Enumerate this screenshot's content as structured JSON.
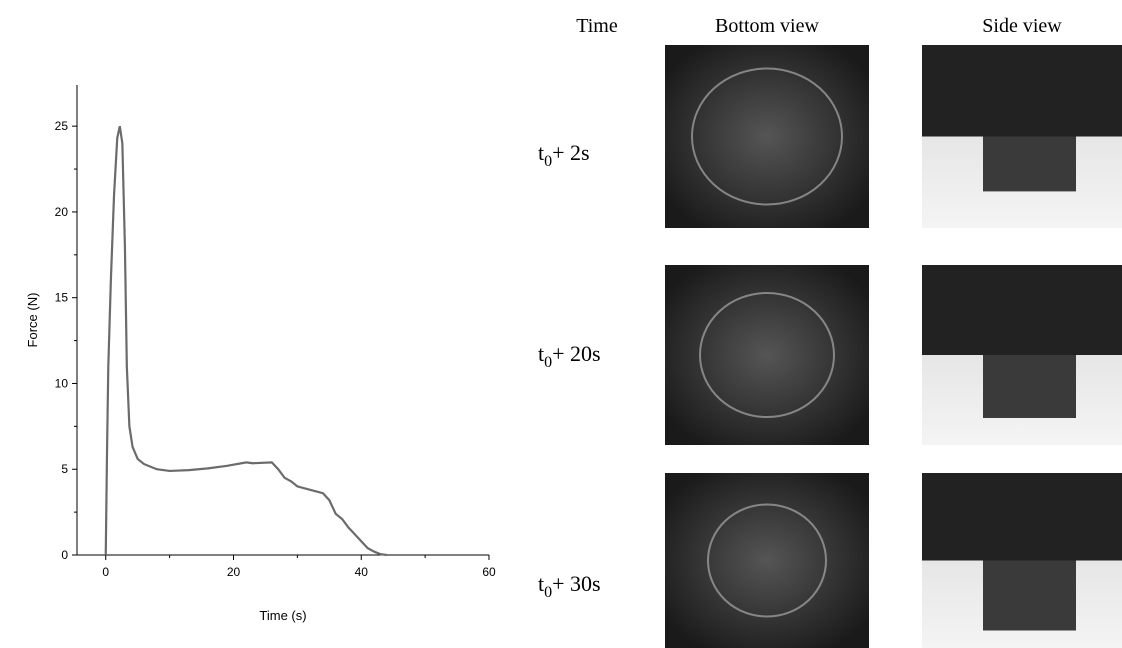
{
  "chart_data": {
    "type": "line",
    "xlabel": "Time (s)",
    "ylabel": "Force (N)",
    "x": [
      0,
      0.2,
      0.4,
      0.8,
      1.3,
      1.8,
      2.2,
      2.6,
      3,
      3.3,
      3.7,
      4.2,
      5,
      6,
      8,
      10,
      13,
      16,
      19,
      22,
      23,
      26,
      27,
      28,
      29,
      30,
      32,
      34,
      35,
      36,
      37,
      38,
      39,
      40,
      41,
      42,
      43,
      44
    ],
    "series": [
      {
        "name": "Force",
        "color": "#6b6b6b",
        "values": [
          0,
          6,
          11,
          16,
          21,
          24.3,
          25,
          24,
          18,
          11,
          7.5,
          6.3,
          5.6,
          5.3,
          5.0,
          4.9,
          4.95,
          5.05,
          5.2,
          5.4,
          5.35,
          5.4,
          5.0,
          4.5,
          4.3,
          4.0,
          3.8,
          3.6,
          3.2,
          2.4,
          2.1,
          1.6,
          1.2,
          0.8,
          0.4,
          0.2,
          0.05,
          0
        ]
      }
    ],
    "xlim": [
      -4.5,
      60
    ],
    "ylim": [
      0,
      27.4
    ],
    "xticks": [
      0,
      20,
      40,
      60
    ],
    "yticks": [
      0,
      5,
      10,
      15,
      20,
      25
    ],
    "xminorticks": [
      10,
      30,
      50
    ],
    "yminorticks": [
      2.5,
      7.5,
      12.5,
      17.5,
      22.5
    ]
  },
  "panel": {
    "headers": [
      "Time",
      "Bottom view",
      "Side view"
    ],
    "rows": [
      {
        "t": "t",
        "sub": "0",
        "rest": "+ 2s"
      },
      {
        "t": "t",
        "sub": "0",
        "rest": "+ 20s"
      },
      {
        "t": "t",
        "sub": "0",
        "rest": "+ 30s"
      }
    ]
  }
}
